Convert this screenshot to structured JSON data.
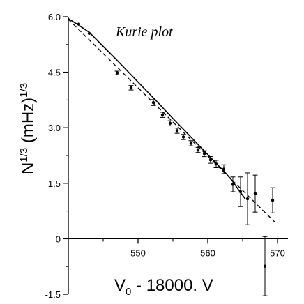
{
  "chart_data": {
    "type": "scatter",
    "title": "",
    "annotation": "Kurie plot",
    "xlabel_main": "V",
    "xlabel_sub": "0",
    "xlabel_rest": " - 18000. V",
    "ylabel_main": "N",
    "ylabel_sup": "1/3",
    "ylabel_rest": " (mHz)",
    "ylabel_sup2": "1/3",
    "xlim": [
      540,
      571.5
    ],
    "ylim": [
      -1.5,
      6.0
    ],
    "x_ticks": [
      550,
      560,
      570
    ],
    "y_ticks": [
      -1.5,
      0,
      1.5,
      3.0,
      4.5,
      6.0
    ],
    "x_tick_labels": [
      "550",
      "560",
      "570"
    ],
    "y_tick_labels": [
      "-1.5",
      "0",
      "1.5",
      "3.0",
      "4.5",
      "6.0"
    ],
    "grid": false,
    "series": [
      {
        "style": "solid",
        "kind": "line",
        "x": [
          540,
          541.5,
          543,
          545,
          547,
          549,
          551,
          553,
          555,
          557,
          559,
          561,
          562.5,
          563.5,
          564.5,
          565.4
        ],
        "y": [
          5.95,
          5.77,
          5.58,
          5.2,
          4.82,
          4.43,
          4.04,
          3.65,
          3.25,
          2.86,
          2.47,
          2.08,
          1.79,
          1.57,
          1.3,
          1.07
        ]
      },
      {
        "style": "dashed",
        "kind": "line",
        "x": [
          540,
          570
        ],
        "y": [
          5.93,
          0.38
        ]
      },
      {
        "kind": "points",
        "x": [
          541.5,
          543,
          547,
          549,
          552.2,
          553.5,
          554.6,
          555.6,
          556.5,
          557.6,
          558.6,
          559.5,
          560.4,
          561.2,
          562.3,
          563.6,
          564.7,
          565.7,
          566.8,
          568.2,
          569.3
        ],
        "y": [
          5.8,
          5.55,
          4.48,
          4.08,
          3.68,
          3.35,
          3.12,
          2.92,
          2.75,
          2.58,
          2.4,
          2.3,
          2.13,
          2.02,
          1.88,
          1.47,
          1.27,
          1.08,
          1.22,
          -0.74,
          1.04
        ],
        "err": [
          0.02,
          0.02,
          0.05,
          0.06,
          0.08,
          0.07,
          0.07,
          0.07,
          0.07,
          0.07,
          0.07,
          0.08,
          0.09,
          0.1,
          0.12,
          0.2,
          0.4,
          0.7,
          0.5,
          0.8,
          0.34
        ]
      }
    ]
  }
}
